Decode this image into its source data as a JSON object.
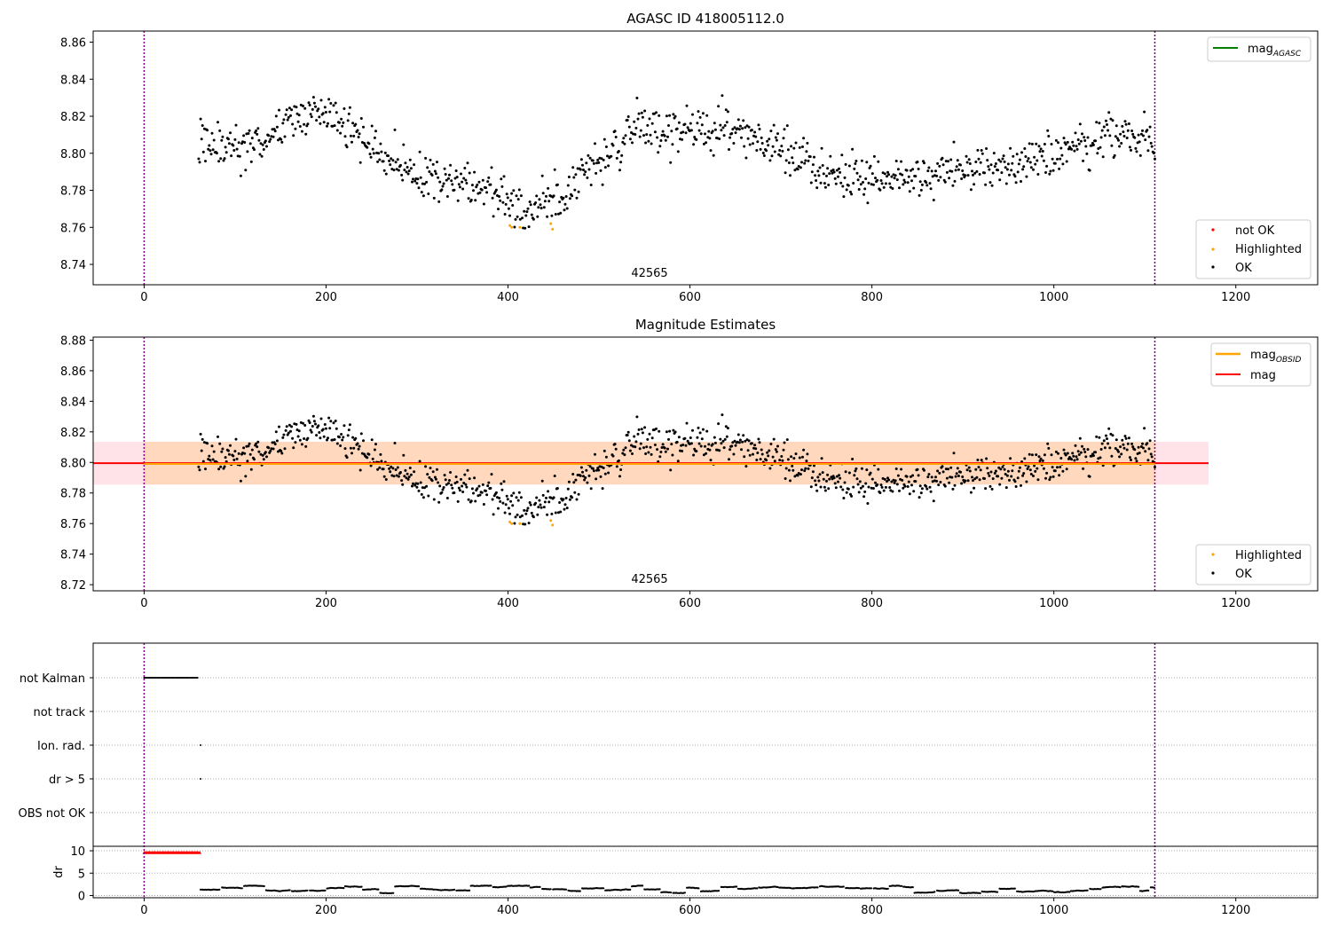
{
  "colors": {
    "ok": "#000000",
    "not_ok": "#ff0000",
    "highlighted": "#ffa500",
    "mag_agasc": "#008000",
    "mag_obsid": "#ffa500",
    "mag": "#ff0000",
    "band_mag": "#ffc0cb",
    "band_obsid": "#ffa500",
    "vline": "#800080"
  },
  "chart_data": [
    {
      "type": "scatter",
      "title": "AGASC ID 418005112.0",
      "xlim": [
        -56,
        1290
      ],
      "ylim": [
        8.729,
        8.866
      ],
      "xticks": [
        "0",
        "200",
        "400",
        "600",
        "800",
        "1000",
        "1200"
      ],
      "yticks": [
        "8.74",
        "8.76",
        "8.78",
        "8.80",
        "8.82",
        "8.84",
        "8.86"
      ],
      "annotation": "42565",
      "annotation_x": 555,
      "vlines_x": [
        0,
        1111
      ],
      "line_legend": [
        {
          "label": "mag",
          "sub": "AGASC",
          "color_key": "mag_agasc"
        }
      ],
      "marker_legend": [
        {
          "label": "not OK",
          "color_key": "not_ok"
        },
        {
          "label": "Highlighted",
          "color_key": "highlighted"
        },
        {
          "label": "OK",
          "color_key": "ok"
        }
      ],
      "series": [
        {
          "name": "OK",
          "x_range": [
            60,
            1111
          ],
          "approx_points": 1000
        },
        {
          "name": "Highlighted",
          "x": [
            402,
            404,
            413,
            447,
            449
          ],
          "y": [
            8.761,
            8.76,
            8.76,
            8.762,
            8.759
          ]
        }
      ],
      "trend": {
        "x": [
          60,
          100,
          130,
          160,
          190,
          220,
          260,
          300,
          340,
          380,
          400,
          415,
          440,
          460,
          500,
          540,
          580,
          620,
          660,
          700,
          760,
          820,
          880,
          940,
          980,
          1020,
          1060,
          1111
        ],
        "y": [
          8.806,
          8.802,
          8.805,
          8.818,
          8.822,
          8.815,
          8.8,
          8.788,
          8.783,
          8.782,
          8.772,
          8.767,
          8.773,
          8.778,
          8.795,
          8.815,
          8.81,
          8.814,
          8.81,
          8.802,
          8.788,
          8.788,
          8.79,
          8.791,
          8.795,
          8.803,
          8.81,
          8.807
        ]
      }
    },
    {
      "type": "scatter",
      "title": "Magnitude Estimates",
      "xlim": [
        -56,
        1290
      ],
      "ylim": [
        8.716,
        8.882
      ],
      "xticks": [
        "0",
        "200",
        "400",
        "600",
        "800",
        "1000",
        "1200"
      ],
      "yticks": [
        "8.72",
        "8.74",
        "8.76",
        "8.78",
        "8.80",
        "8.82",
        "8.84",
        "8.86",
        "8.88"
      ],
      "annotation": "42565",
      "annotation_x": 555,
      "vlines_x": [
        0,
        1111
      ],
      "line_legend": [
        {
          "label": "mag",
          "sub": "OBSID",
          "color_key": "mag_obsid"
        },
        {
          "label": "mag",
          "sub": "",
          "color_key": "mag"
        }
      ],
      "marker_legend": [
        {
          "label": "Highlighted",
          "color_key": "highlighted"
        },
        {
          "label": "OK",
          "color_key": "ok"
        }
      ],
      "mag_line": {
        "y": 8.7995,
        "x_range": [
          -56,
          1170
        ]
      },
      "mag_band": {
        "y_range": [
          8.7855,
          8.8135
        ],
        "x_range": [
          -56,
          1170
        ]
      },
      "obsid_line": {
        "y": 8.799,
        "x_range": [
          0,
          1111
        ]
      },
      "obsid_band": {
        "y_range": [
          8.7855,
          8.8135
        ],
        "x_range": [
          0,
          1111
        ]
      }
    },
    {
      "type": "scatter",
      "title": "",
      "xlim": [
        -56,
        1290
      ],
      "xticks": [
        "0",
        "200",
        "400",
        "600",
        "800",
        "1000",
        "1200"
      ],
      "flag_rows": [
        "not Kalman",
        "not track",
        "Ion. rad.",
        "dr > 5",
        "OBS not OK"
      ],
      "flag_points": [
        {
          "row": "not Kalman",
          "x_range": [
            0,
            60
          ]
        },
        {
          "row": "Ion. rad.",
          "x": [
            62
          ]
        },
        {
          "row": "dr > 5",
          "x": [
            62
          ]
        }
      ],
      "dr_ylabel": "dr",
      "dr_yticks": [
        "0",
        "5",
        "10"
      ],
      "dr_ylim": [
        -0.5,
        11
      ],
      "dr_saturated": {
        "x_range": [
          0,
          62
        ],
        "y": 9.6
      },
      "dr_baseline": {
        "x_range": [
          62,
          1111
        ],
        "y_range": [
          0.5,
          2.2
        ]
      },
      "vlines_x": [
        0,
        1111
      ]
    }
  ]
}
